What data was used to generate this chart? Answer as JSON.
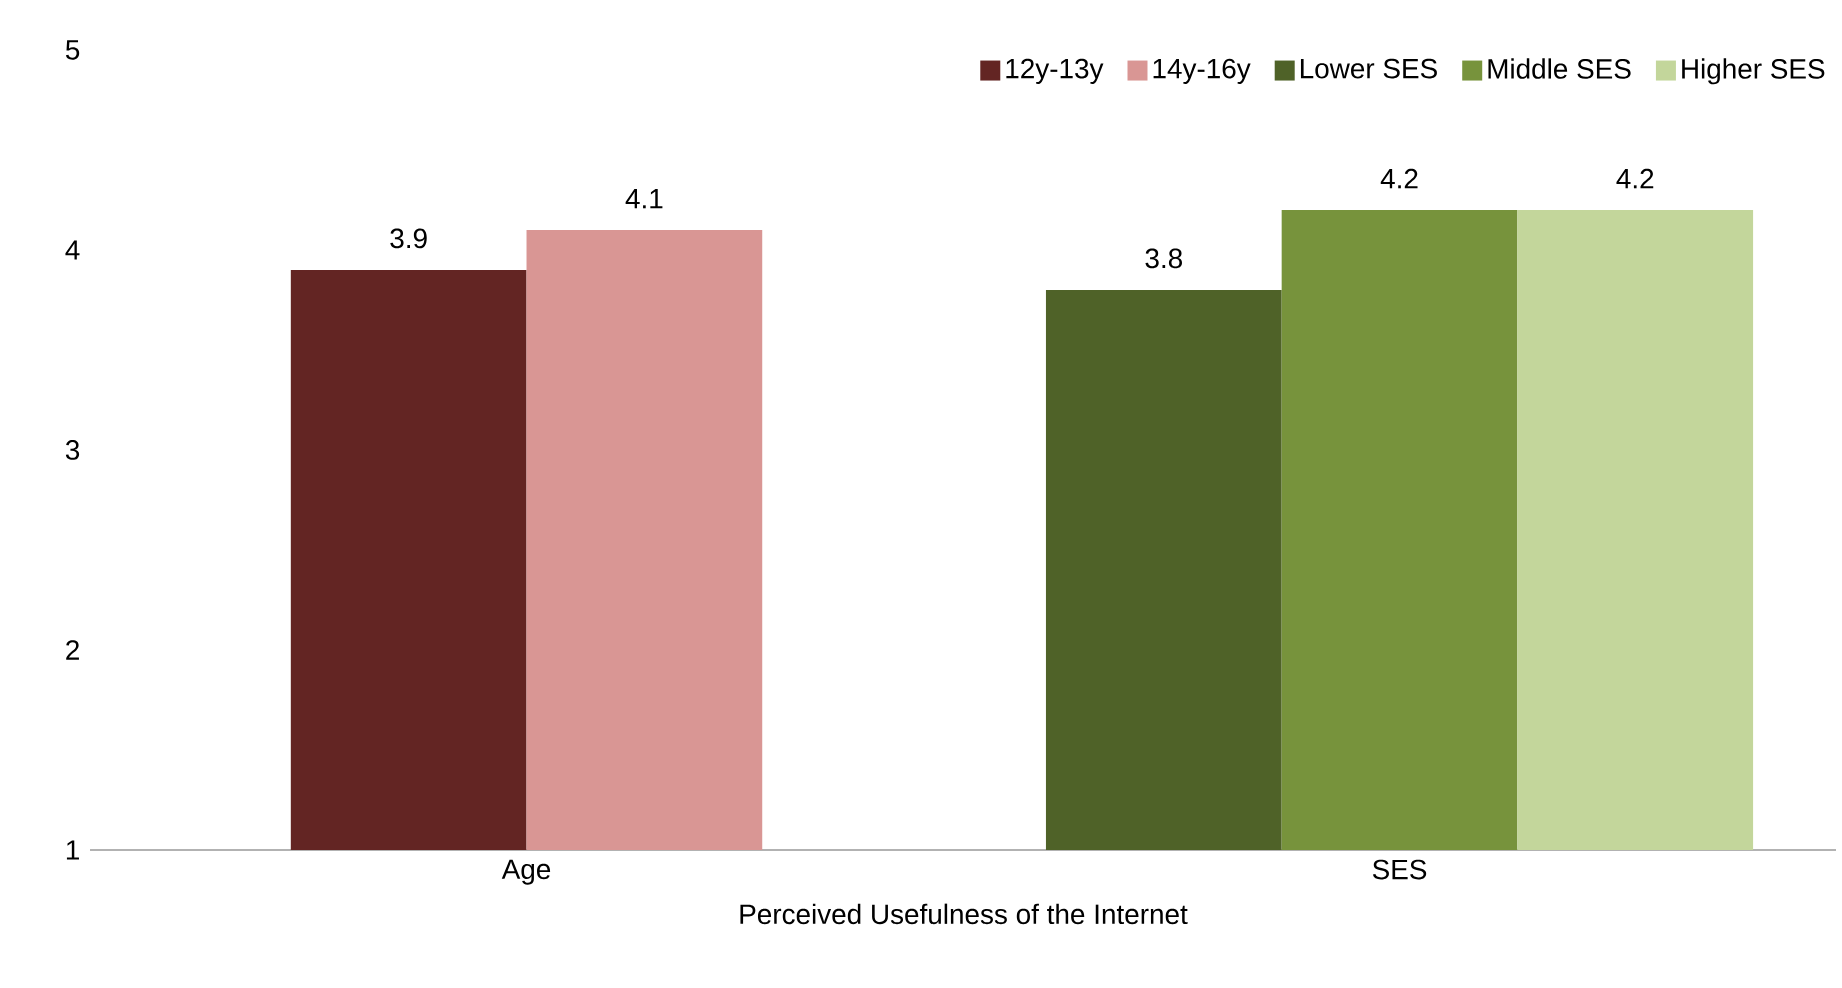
{
  "chart_data": {
    "type": "bar",
    "xlabel": "Perceived Usefulness of the Internet",
    "categories": [
      "Age",
      "SES"
    ],
    "series": [
      {
        "name": "12y-13y",
        "color": "#632523",
        "values": [
          3.9,
          null
        ]
      },
      {
        "name": "14y-16y",
        "color": "#d99694",
        "values": [
          4.1,
          null
        ]
      },
      {
        "name": "Lower SES",
        "color": "#4f6228",
        "values": [
          null,
          3.8
        ]
      },
      {
        "name": "Middle SES",
        "color": "#77933c",
        "values": [
          null,
          4.2
        ]
      },
      {
        "name": "Higher SES",
        "color": "#c3d69b",
        "values": [
          null,
          4.2
        ]
      }
    ],
    "ylim": [
      1,
      5
    ],
    "yticks": [
      1,
      2,
      3,
      4,
      5
    ],
    "grid": false,
    "legend": "top right",
    "data_labels": true
  }
}
